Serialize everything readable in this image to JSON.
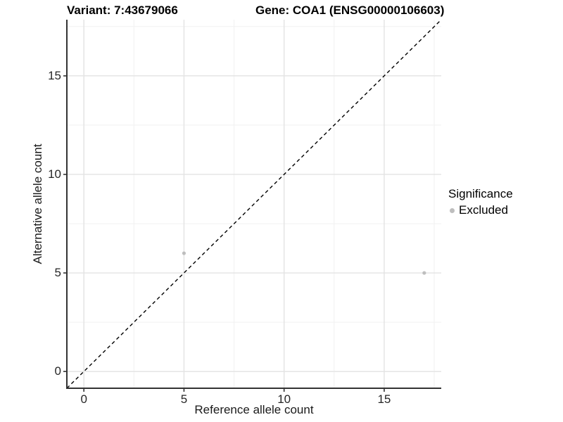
{
  "header": {
    "variant_title": "Variant: 7:43679066",
    "gene_title": "Gene: COA1 (ENSG00000106603)"
  },
  "legend": {
    "title": "Significance",
    "items": [
      {
        "label": "Excluded",
        "color": "#BEBEBE"
      }
    ]
  },
  "chart_data": {
    "type": "scatter",
    "title": "Variant: 7:43679066",
    "subtitle": "Gene: COA1 (ENSG00000106603)",
    "xlabel": "Reference allele count",
    "ylabel": "Alternative allele count",
    "xlim": [
      -0.85,
      17.85
    ],
    "ylim": [
      -0.85,
      17.85
    ],
    "x_ticks": [
      0,
      5,
      10,
      15
    ],
    "y_ticks": [
      0,
      5,
      10,
      15
    ],
    "x_minor_gridlines": [
      2.5,
      7.5,
      12.5,
      17.5
    ],
    "y_minor_gridlines": [
      2.5,
      7.5,
      12.5,
      17.5
    ],
    "grid": true,
    "legend_position": "right",
    "legend_title": "Significance",
    "series": [
      {
        "name": "Excluded",
        "color": "#BEBEBE",
        "points": [
          [
            5,
            6
          ],
          [
            17,
            5
          ]
        ]
      }
    ],
    "reference_line": {
      "style": "dashed",
      "color": "#000000",
      "from": [
        -0.85,
        -0.85
      ],
      "to": [
        17.85,
        17.85
      ]
    }
  },
  "colors": {
    "background": "#FFFFFF",
    "grid_major": "#E3E3E3",
    "grid_minor": "#F1F1F1",
    "axis_line": "#333333",
    "tick_mark": "#333333",
    "point": "#BEBEBE",
    "dashed_line": "#000000"
  }
}
